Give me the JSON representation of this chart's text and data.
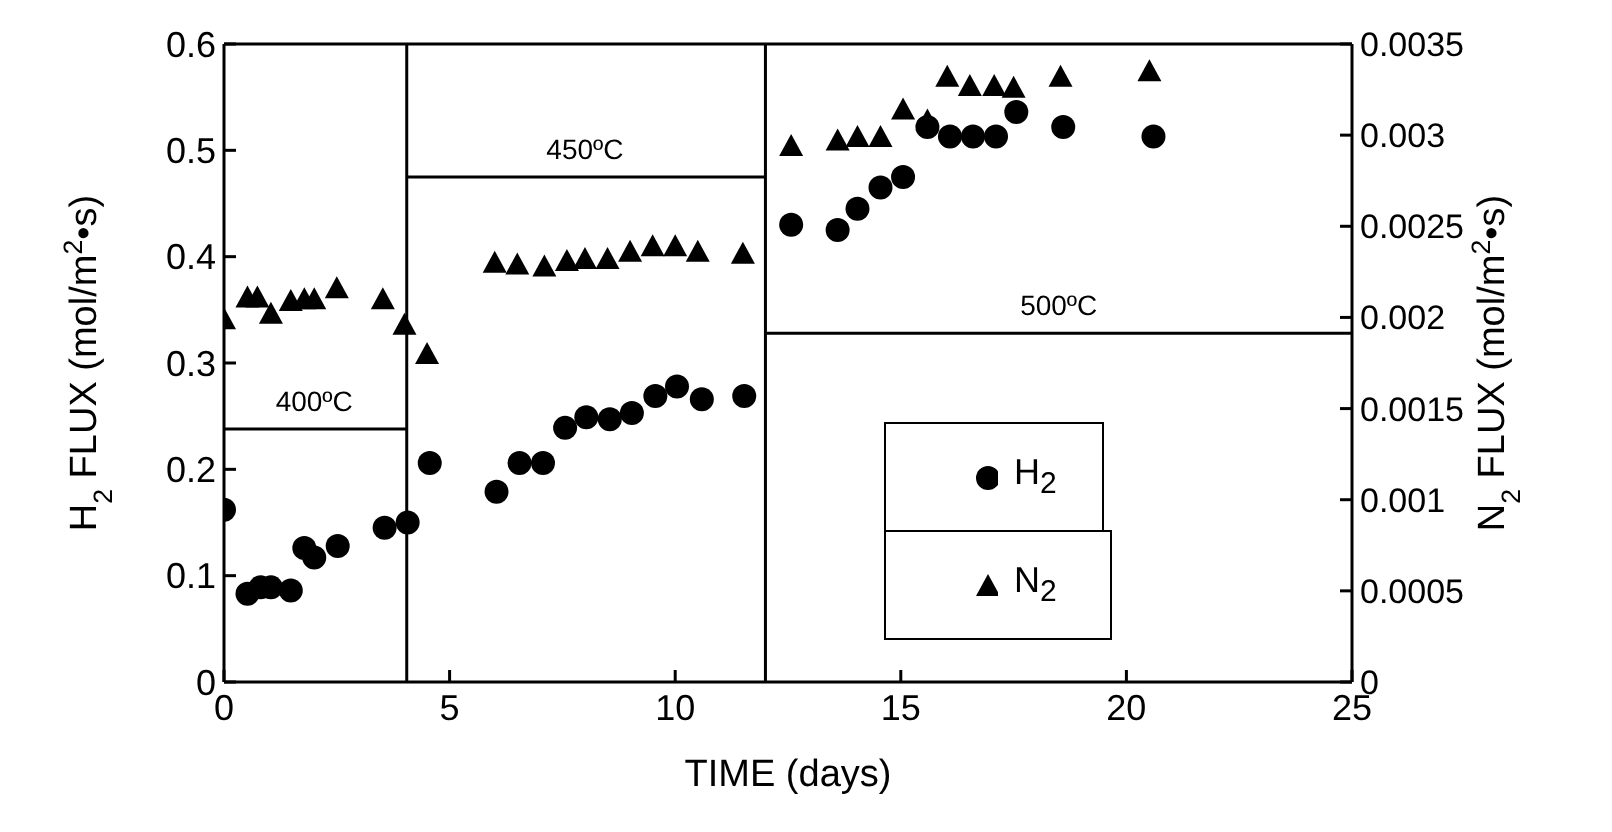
{
  "chart_data": {
    "type": "scatter",
    "xlabel": "TIME (days)",
    "ylabel": "H$_{2}$ FLUX (mol/m$^{2}$•s)",
    "y2label": "N$_{2}$ FLUX (mol/m$^{2}$•s)",
    "xlim": [
      0,
      25
    ],
    "xticks": [
      0,
      5,
      10,
      15,
      20,
      25
    ],
    "ylim": [
      0,
      0.6
    ],
    "yticks": [
      0,
      0.1,
      0.2,
      0.3,
      0.4,
      0.5,
      0.6
    ],
    "y2lim": [
      0,
      0.0035
    ],
    "y2ticks": [
      0,
      0.0005,
      0.001,
      0.0015,
      0.002,
      0.0025,
      0.003,
      0.0035
    ],
    "series": [
      {
        "name": "H$_{2}$",
        "marker": "circle",
        "color": "#000000",
        "x": [
          0,
          0.52,
          0.81,
          1.04,
          1.48,
          1.78,
          2.0,
          2.52,
          3.56,
          4.07,
          4.56,
          6.04,
          6.55,
          7.07,
          7.56,
          8.03,
          8.55,
          9.04,
          9.56,
          10.04,
          10.59,
          11.53,
          12.57,
          13.6,
          14.04,
          14.55,
          15.05,
          15.59,
          16.09,
          16.6,
          17.11,
          17.56,
          18.6,
          20.6
        ],
        "values": [
          0.162,
          0.083,
          0.089,
          0.089,
          0.086,
          0.126,
          0.117,
          0.128,
          0.145,
          0.15,
          0.206,
          0.179,
          0.206,
          0.206,
          0.239,
          0.249,
          0.247,
          0.253,
          0.269,
          0.278,
          0.266,
          0.269,
          0.43,
          0.425,
          0.445,
          0.465,
          0.475,
          0.522,
          0.513,
          0.513,
          0.513,
          0.536,
          0.522,
          0.513
        ]
      },
      {
        "name": "N$_{2}$",
        "marker": "triangle",
        "axis": "y2",
        "color": "#000000",
        "x": [
          0,
          0.52,
          0.74,
          1.04,
          1.48,
          1.78,
          2.0,
          2.5,
          3.52,
          4.0,
          4.5,
          6.0,
          6.5,
          7.1,
          7.6,
          8.0,
          8.5,
          9.0,
          9.5,
          10.0,
          10.5,
          11.5,
          12.57,
          13.6,
          14.04,
          14.55,
          15.05,
          15.59,
          16.03,
          16.53,
          17.07,
          17.5,
          18.54,
          20.51
        ],
        "values": [
          0.00199,
          0.00211,
          0.00211,
          0.00202,
          0.00209,
          0.0021,
          0.0021,
          0.00216,
          0.0021,
          0.00196,
          0.0018,
          0.0023,
          0.00229,
          0.00228,
          0.00231,
          0.00232,
          0.00232,
          0.00236,
          0.00239,
          0.00239,
          0.00236,
          0.00235,
          0.00294,
          0.00297,
          0.00299,
          0.00299,
          0.00314,
          0.00308,
          0.00332,
          0.00327,
          0.00327,
          0.00326,
          0.00332,
          0.00335
        ]
      },
      {
        "type": "line",
        "marker": "none",
        "color": "#000000",
        "x": [
          0,
          4.05
        ],
        "values": [
          0.238,
          0.238
        ]
      },
      {
        "type": "line",
        "marker": "none",
        "color": "#000000",
        "x": [
          4.05,
          12
        ],
        "values": [
          0.475,
          0.475
        ]
      },
      {
        "type": "line",
        "marker": "none",
        "color": "#000000",
        "x": [
          12,
          25
        ],
        "values": [
          0.328,
          0.328
        ]
      }
    ],
    "ref_lines": [
      {
        "axis": "x",
        "value": 4.05,
        "color": "#000000"
      },
      {
        "axis": "x",
        "value": 12,
        "color": "#000000"
      }
    ],
    "annotations": [
      {
        "text": "400ºC",
        "x": 2,
        "y": 0.238
      },
      {
        "text": "450ºC",
        "x": 8,
        "y": 0.475
      },
      {
        "text": "500ºC",
        "x": 18.5,
        "y": 0.328
      }
    ],
    "legend": "bottom right",
    "grid": false
  }
}
